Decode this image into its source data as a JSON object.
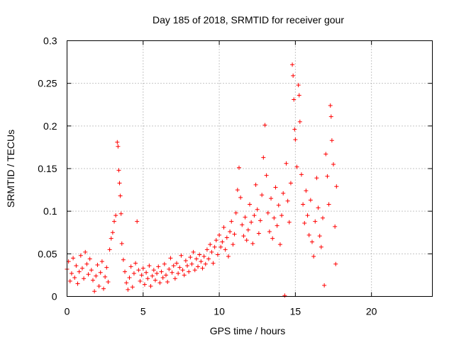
{
  "chart_data": {
    "type": "scatter",
    "title": "Day 185 of 2018, SRMTID for receiver gour",
    "xlabel": "GPS time / hours",
    "ylabel": "SRMTID / TECUs",
    "xlim": [
      0,
      24
    ],
    "ylim": [
      0,
      0.3
    ],
    "x_ticks": [
      0,
      5,
      10,
      15,
      20
    ],
    "y_ticks": [
      0,
      0.05,
      0.1,
      0.15,
      0.2,
      0.25,
      0.3
    ],
    "x_tick_labels": [
      "0",
      "5",
      "10",
      "15",
      "20"
    ],
    "y_tick_labels": [
      "0",
      "0.05",
      "0.1",
      "0.15",
      "0.2",
      "0.25",
      "0.3"
    ],
    "grid": true,
    "series": [
      {
        "name": "SRMTID",
        "marker": "+",
        "color": "#ff0000",
        "points": [
          [
            0.0,
            0.032
          ],
          [
            0.1,
            0.041
          ],
          [
            0.2,
            0.018
          ],
          [
            0.3,
            0.027
          ],
          [
            0.4,
            0.045
          ],
          [
            0.5,
            0.022
          ],
          [
            0.6,
            0.036
          ],
          [
            0.7,
            0.015
          ],
          [
            0.8,
            0.029
          ],
          [
            0.9,
            0.048
          ],
          [
            1.0,
            0.033
          ],
          [
            1.1,
            0.021
          ],
          [
            1.2,
            0.052
          ],
          [
            1.3,
            0.038
          ],
          [
            1.4,
            0.026
          ],
          [
            1.5,
            0.044
          ],
          [
            1.6,
            0.031
          ],
          [
            1.7,
            0.019
          ],
          [
            1.8,
            0.006
          ],
          [
            1.9,
            0.024
          ],
          [
            2.0,
            0.037
          ],
          [
            2.1,
            0.012
          ],
          [
            2.2,
            0.028
          ],
          [
            2.3,
            0.041
          ],
          [
            2.4,
            0.009
          ],
          [
            2.5,
            0.023
          ],
          [
            2.6,
            0.034
          ],
          [
            2.7,
            0.017
          ],
          [
            2.8,
            0.055
          ],
          [
            2.9,
            0.068
          ],
          [
            3.0,
            0.075
          ],
          [
            3.1,
            0.088
          ],
          [
            3.2,
            0.095
          ],
          [
            3.3,
            0.181
          ],
          [
            3.35,
            0.176
          ],
          [
            3.4,
            0.148
          ],
          [
            3.45,
            0.133
          ],
          [
            3.5,
            0.118
          ],
          [
            3.55,
            0.097
          ],
          [
            3.6,
            0.062
          ],
          [
            3.7,
            0.043
          ],
          [
            3.8,
            0.029
          ],
          [
            3.9,
            0.016
          ],
          [
            4.0,
            0.008
          ],
          [
            4.1,
            0.022
          ],
          [
            4.2,
            0.035
          ],
          [
            4.3,
            0.011
          ],
          [
            4.4,
            0.027
          ],
          [
            4.5,
            0.039
          ],
          [
            4.6,
            0.088
          ],
          [
            4.7,
            0.031
          ],
          [
            4.8,
            0.018
          ],
          [
            4.9,
            0.025
          ],
          [
            5.0,
            0.033
          ],
          [
            5.1,
            0.014
          ],
          [
            5.2,
            0.028
          ],
          [
            5.3,
            0.021
          ],
          [
            5.4,
            0.036
          ],
          [
            5.5,
            0.012
          ],
          [
            5.6,
            0.024
          ],
          [
            5.7,
            0.031
          ],
          [
            5.8,
            0.019
          ],
          [
            5.9,
            0.027
          ],
          [
            6.0,
            0.035
          ],
          [
            6.1,
            0.016
          ],
          [
            6.2,
            0.029
          ],
          [
            6.3,
            0.022
          ],
          [
            6.4,
            0.038
          ],
          [
            6.5,
            0.025
          ],
          [
            6.6,
            0.017
          ],
          [
            6.7,
            0.032
          ],
          [
            6.8,
            0.045
          ],
          [
            6.9,
            0.028
          ],
          [
            7.0,
            0.036
          ],
          [
            7.1,
            0.021
          ],
          [
            7.2,
            0.039
          ],
          [
            7.3,
            0.027
          ],
          [
            7.4,
            0.034
          ],
          [
            7.5,
            0.048
          ],
          [
            7.6,
            0.031
          ],
          [
            7.7,
            0.025
          ],
          [
            7.8,
            0.042
          ],
          [
            7.9,
            0.036
          ],
          [
            8.0,
            0.029
          ],
          [
            8.1,
            0.046
          ],
          [
            8.2,
            0.038
          ],
          [
            8.3,
            0.052
          ],
          [
            8.4,
            0.031
          ],
          [
            8.5,
            0.044
          ],
          [
            8.6,
            0.035
          ],
          [
            8.7,
            0.049
          ],
          [
            8.8,
            0.041
          ],
          [
            8.9,
            0.033
          ],
          [
            9.0,
            0.047
          ],
          [
            9.1,
            0.038
          ],
          [
            9.2,
            0.055
          ],
          [
            9.3,
            0.044
          ],
          [
            9.4,
            0.061
          ],
          [
            9.5,
            0.052
          ],
          [
            9.6,
            0.039
          ],
          [
            9.7,
            0.058
          ],
          [
            9.8,
            0.066
          ],
          [
            9.9,
            0.049
          ],
          [
            10.0,
            0.072
          ],
          [
            10.1,
            0.058
          ],
          [
            10.2,
            0.064
          ],
          [
            10.3,
            0.081
          ],
          [
            10.4,
            0.055
          ],
          [
            10.5,
            0.069
          ],
          [
            10.6,
            0.047
          ],
          [
            10.7,
            0.076
          ],
          [
            10.8,
            0.088
          ],
          [
            10.9,
            0.061
          ],
          [
            11.0,
            0.073
          ],
          [
            11.1,
            0.098
          ],
          [
            11.2,
            0.125
          ],
          [
            11.3,
            0.151
          ],
          [
            11.4,
            0.116
          ],
          [
            11.5,
            0.084
          ],
          [
            11.6,
            0.071
          ],
          [
            11.7,
            0.093
          ],
          [
            11.8,
            0.066
          ],
          [
            11.9,
            0.078
          ],
          [
            12.0,
            0.108
          ],
          [
            12.1,
            0.087
          ],
          [
            12.2,
            0.062
          ],
          [
            12.3,
            0.095
          ],
          [
            12.4,
            0.131
          ],
          [
            12.5,
            0.102
          ],
          [
            12.6,
            0.074
          ],
          [
            12.7,
            0.089
          ],
          [
            12.8,
            0.119
          ],
          [
            12.9,
            0.163
          ],
          [
            13.0,
            0.201
          ],
          [
            13.1,
            0.142
          ],
          [
            13.2,
            0.098
          ],
          [
            13.3,
            0.076
          ],
          [
            13.4,
            0.115
          ],
          [
            13.5,
            0.068
          ],
          [
            13.6,
            0.092
          ],
          [
            13.7,
            0.128
          ],
          [
            13.8,
            0.083
          ],
          [
            13.9,
            0.107
          ],
          [
            14.0,
            0.061
          ],
          [
            14.1,
            0.095
          ],
          [
            14.2,
            0.121
          ],
          [
            14.3,
            0.001
          ],
          [
            14.4,
            0.156
          ],
          [
            14.5,
            0.112
          ],
          [
            14.6,
            0.087
          ],
          [
            14.7,
            0.133
          ],
          [
            14.8,
            0.272
          ],
          [
            14.85,
            0.259
          ],
          [
            14.9,
            0.231
          ],
          [
            14.95,
            0.196
          ],
          [
            15.0,
            0.184
          ],
          [
            15.1,
            0.152
          ],
          [
            15.2,
            0.248
          ],
          [
            15.25,
            0.236
          ],
          [
            15.3,
            0.205
          ],
          [
            15.4,
            0.143
          ],
          [
            15.5,
            0.108
          ],
          [
            15.6,
            0.086
          ],
          [
            15.7,
            0.124
          ],
          [
            15.8,
            0.095
          ],
          [
            15.9,
            0.072
          ],
          [
            16.0,
            0.113
          ],
          [
            16.1,
            0.064
          ],
          [
            16.2,
            0.047
          ],
          [
            16.3,
            0.088
          ],
          [
            16.4,
            0.139
          ],
          [
            16.5,
            0.104
          ],
          [
            16.6,
            0.071
          ],
          [
            16.7,
            0.058
          ],
          [
            16.8,
            0.092
          ],
          [
            16.9,
            0.013
          ],
          [
            17.0,
            0.167
          ],
          [
            17.1,
            0.141
          ],
          [
            17.2,
            0.108
          ],
          [
            17.3,
            0.224
          ],
          [
            17.35,
            0.211
          ],
          [
            17.4,
            0.183
          ],
          [
            17.5,
            0.155
          ],
          [
            17.6,
            0.082
          ],
          [
            17.65,
            0.038
          ],
          [
            17.7,
            0.129
          ]
        ]
      }
    ]
  }
}
